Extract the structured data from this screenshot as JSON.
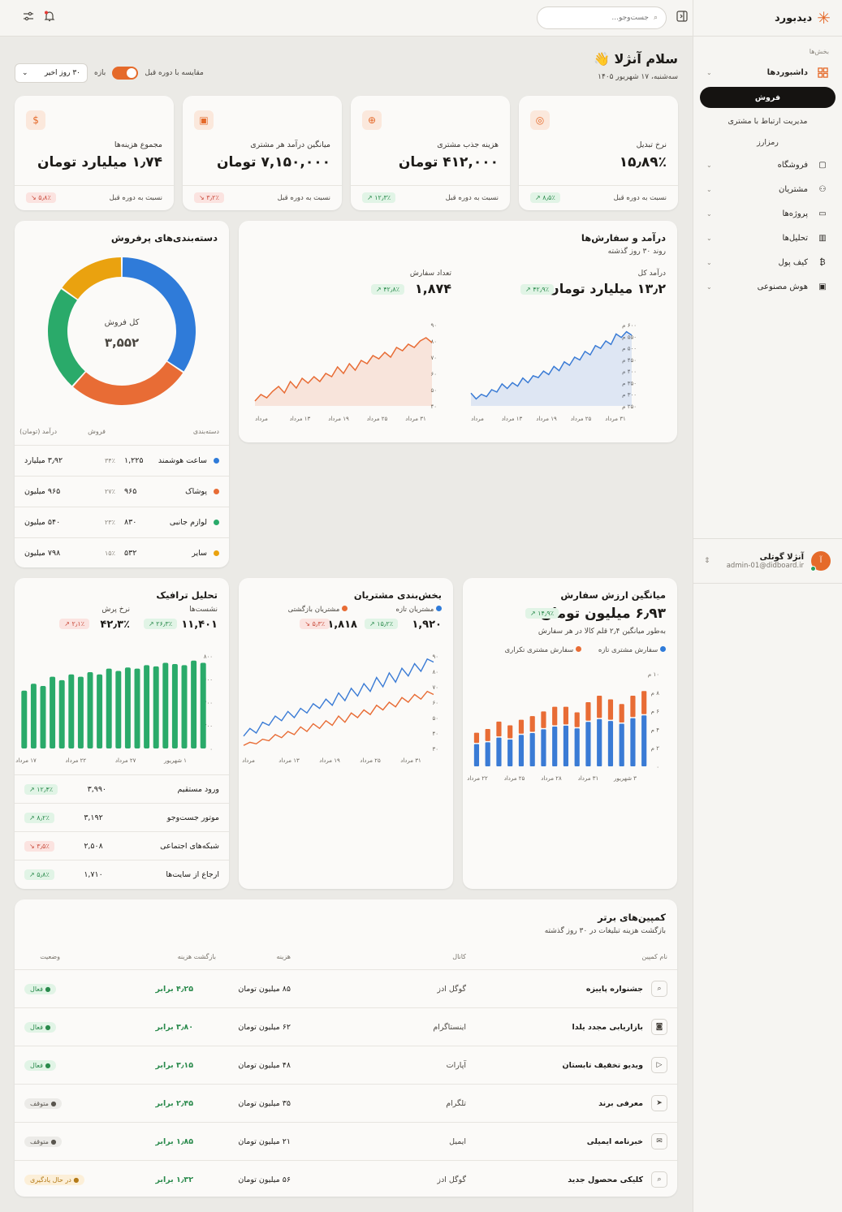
{
  "brand": {
    "name": "دیدبورد"
  },
  "sidebar": {
    "section": "بخش‌ها",
    "items": [
      {
        "label": "داشبوردها",
        "icon": "grid-icon"
      },
      {
        "label": "فروشگاه",
        "icon": "shopping-bag-icon"
      },
      {
        "label": "مشتریان",
        "icon": "users-icon"
      },
      {
        "label": "پروژه‌ها",
        "icon": "folder-icon"
      },
      {
        "label": "تحلیل‌ها",
        "icon": "bar-chart-icon"
      },
      {
        "label": "کیف پول",
        "icon": "bitcoin-icon"
      },
      {
        "label": "هوش مصنوعی",
        "icon": "robot-icon"
      }
    ],
    "subitems": [
      "فروش",
      "مدیریت ارتباط با مشتری",
      "رمزارز"
    ],
    "user": {
      "initial": "آ",
      "name": "آنژلا گوتلی",
      "email": "admin-01@didboard.ir"
    }
  },
  "topbar": {
    "search_placeholder": "جست‌وجو..."
  },
  "header": {
    "greeting": "سلام آنژلا 👋",
    "date": "سه‌شنبه، ۱۷ شهریور ۱۴۰۵",
    "compare_label": "مقایسه با دوره قبل",
    "range_label": "بازه",
    "range_value": "۳۰ روز اخیر"
  },
  "kpis": [
    {
      "label": "نرخ تبدیل",
      "value": "۱۵٫۸۹٪",
      "badge": "۸٫۵٪",
      "dir": "up",
      "foot": "نسبت به دوره قبل",
      "icon": "target-icon"
    },
    {
      "label": "هزینه جذب مشتری",
      "value": "۴۱۲,۰۰۰ تومان",
      "badge": "۱۲٫۳٪",
      "dir": "up",
      "foot": "نسبت به دوره قبل",
      "icon": "user-plus-icon"
    },
    {
      "label": "میانگین درآمد هر مشتری",
      "value": "۷,۱۵۰,۰۰۰ تومان",
      "badge": "۳٫۲٪",
      "dir": "down",
      "foot": "نسبت به دوره قبل",
      "icon": "wallet-icon"
    },
    {
      "label": "مجموع هزینه‌ها",
      "value": "۱٫۷۴ میلیارد تومان",
      "badge": "۵٫۸٪",
      "dir": "down",
      "foot": "نسبت به دوره قبل",
      "icon": "dollar-file-icon"
    }
  ],
  "revenue": {
    "title": "درآمد و سفارش‌ها",
    "subtitle": "روند ۳۰ روز گذشته",
    "rev_label": "درآمد کل",
    "rev_value": "۱۳٫۲ میلیارد تومان",
    "rev_badge": "۴۲٫۹٪",
    "ord_label": "تعداد سفارش",
    "ord_value": "۱,۸۷۴",
    "ord_badge": "۴۲٫۸٪"
  },
  "categories": {
    "title": "دسته‌بندی‌های پرفروش",
    "center_label": "کل فروش",
    "center_value": "۳,۵۵۲",
    "headers": [
      "دسته‌بندی",
      "فروش",
      "درآمد (تومان)"
    ],
    "rows": [
      {
        "name": "ساعت هوشمند",
        "pct": "۳۴٪",
        "sales": "۱,۲۲۵",
        "rev": "۳٫۹۲ میلیارد",
        "color": "#2f7bd9"
      },
      {
        "name": "پوشاک",
        "pct": "۲۷٪",
        "sales": "۹۶۵",
        "rev": "۹۶۵ میلیون",
        "color": "#e86c35"
      },
      {
        "name": "لوازم جانبی",
        "pct": "۲۳٪",
        "sales": "۸۳۰",
        "rev": "۵۴۰ میلیون",
        "color": "#2aaa6a"
      },
      {
        "name": "سایر",
        "pct": "۱۵٪",
        "sales": "۵۳۲",
        "rev": "۷۹۸ میلیون",
        "color": "#eaa20f"
      }
    ]
  },
  "aov": {
    "title": "میانگین ارزش سفارش",
    "value": "۶٫۹۳ میلیون تومان",
    "badge": "۱۴٫۹٪",
    "subtitle": "به‌طور میانگین ۲٫۴ قلم کالا در هر سفارش",
    "legend": [
      "سفارش مشتری تازه",
      "سفارش مشتری تکراری"
    ]
  },
  "segments": {
    "title": "بخش‌بندی مشتریان",
    "new_label": "مشتریان تازه",
    "new_value": "۱,۹۲۰",
    "new_badge": "۱۵٫۲٪",
    "ret_label": "مشتریان بازگشتی",
    "ret_value": "۱,۸۱۸",
    "ret_badge": "۵٫۳٪"
  },
  "traffic": {
    "title": "تحلیل ترافیک",
    "sess_label": "نشست‌ها",
    "sess_value": "۱۱,۴۰۱",
    "sess_badge": "۲۶٫۳٪",
    "bounce_label": "نرخ پرش",
    "bounce_value": "۴۲٫۳٪",
    "bounce_badge": "۲٫۱٪",
    "rows": [
      {
        "name": "ورود مستقیم",
        "value": "۳,۹۹۰",
        "badge": "۱۲٫۴٪",
        "dir": "up"
      },
      {
        "name": "موتور جست‌وجو",
        "value": "۳,۱۹۲",
        "badge": "۸٫۲٪",
        "dir": "up"
      },
      {
        "name": "شبکه‌های اجتماعی",
        "value": "۲,۵۰۸",
        "badge": "۳٫۵٪",
        "dir": "down"
      },
      {
        "name": "ارجاع از سایت‌ها",
        "value": "۱,۷۱۰",
        "badge": "۵٫۸٪",
        "dir": "up"
      }
    ]
  },
  "campaigns": {
    "title": "کمپین‌های برتر",
    "subtitle": "بازگشت هزینه تبلیغات در ۳۰ روز گذشته",
    "headers": [
      "نام کمپین",
      "کانال",
      "هزینه",
      "بازگشت هزینه",
      "وضعیت"
    ],
    "rows": [
      {
        "name": "جشنواره پاییزه",
        "channel": "گوگل ادز",
        "cost": "۸۵ میلیون تومان",
        "roas": "۴٫۲۵ برابر",
        "status": "فعال",
        "st": "a",
        "icon": "search-icon"
      },
      {
        "name": "بازاریابی مجدد یلدا",
        "channel": "اینستاگرام",
        "cost": "۶۲ میلیون تومان",
        "roas": "۳٫۸۰ برابر",
        "status": "فعال",
        "st": "a",
        "icon": "instagram-icon"
      },
      {
        "name": "ویدیو تخفیف تابستان",
        "channel": "آپارات",
        "cost": "۴۸ میلیون تومان",
        "roas": "۳٫۱۵ برابر",
        "status": "فعال",
        "st": "a",
        "icon": "play-icon"
      },
      {
        "name": "معرفی برند",
        "channel": "تلگرام",
        "cost": "۳۵ میلیون تومان",
        "roas": "۲٫۴۵ برابر",
        "status": "متوقف",
        "st": "p",
        "icon": "send-icon"
      },
      {
        "name": "خبرنامه ایمیلی",
        "channel": "ایمیل",
        "cost": "۲۱ میلیون تومان",
        "roas": "۱٫۸۵ برابر",
        "status": "متوقف",
        "st": "p",
        "icon": "mail-icon"
      },
      {
        "name": "کلیکی محصول جدید",
        "channel": "گوگل ادز",
        "cost": "۵۶ میلیون تومان",
        "roas": "۱٫۳۲ برابر",
        "status": "در حال یادگیری",
        "st": "l",
        "icon": "search-icon"
      }
    ]
  },
  "chart_data": [
    {
      "type": "area",
      "title": "درآمد کل",
      "x_ticks": [
        "مرداد",
        "۱۳ مرداد",
        "۱۹ مرداد",
        "۲۵ مرداد",
        "۳۱ مرداد"
      ],
      "y_ticks": [
        "۲۵۰ م",
        "۳۰۰ م",
        "۳۵۰ م",
        "۴۰۰ م",
        "۴۵۰ م",
        "۵۰۰ م",
        "۵۵۰ م",
        "۶۰۰ م"
      ],
      "ylim": [
        250,
        600
      ],
      "values": [
        305,
        280,
        300,
        290,
        320,
        310,
        345,
        325,
        350,
        335,
        370,
        350,
        380,
        372,
        400,
        385,
        420,
        402,
        440,
        425,
        460,
        448,
        485,
        470,
        510,
        498,
        530,
        515,
        560,
        545,
        570,
        555
      ],
      "color": "#3a7bd5"
    },
    {
      "type": "area",
      "title": "تعداد سفارش",
      "x_ticks": [
        "مرداد",
        "۱۳ مرداد",
        "۱۹ مرداد",
        "۲۵ مرداد",
        "۳۱ مرداد"
      ],
      "y_ticks": [
        "۴۰",
        "۵۰",
        "۶۰",
        "۷۰",
        "۸۰",
        "۹۰"
      ],
      "ylim": [
        40,
        90
      ],
      "values": [
        43,
        47,
        45,
        49,
        52,
        48,
        55,
        51,
        57,
        54,
        58,
        55,
        60,
        58,
        64,
        60,
        66,
        62,
        68,
        66,
        71,
        69,
        73,
        70,
        76,
        74,
        78,
        76,
        80,
        82,
        79
      ],
      "color": "#e86c35"
    },
    {
      "type": "pie",
      "categories": [
        "ساعت هوشمند",
        "پوشاک",
        "لوازم جانبی",
        "سایر"
      ],
      "values": [
        34,
        27,
        23,
        15
      ]
    },
    {
      "type": "bar",
      "stacked": true,
      "series": [
        {
          "name": "سفارش مشتری تازه",
          "values": [
            2.4,
            2.6,
            3.1,
            2.9,
            3.4,
            3.6,
            4.0,
            4.3,
            4.4,
            4.1,
            4.8,
            5.1,
            4.9,
            4.6,
            5.2,
            5.5
          ]
        },
        {
          "name": "سفارش مشتری تکراری",
          "values": [
            1.1,
            1.3,
            1.6,
            1.4,
            1.5,
            1.7,
            1.8,
            2.0,
            1.9,
            1.6,
            2.0,
            2.4,
            2.2,
            2.0,
            2.3,
            2.5
          ]
        }
      ],
      "x_ticks": [
        "۲۲ مرداد",
        "۲۵ مرداد",
        "۲۸ مرداد",
        "۳۱ مرداد",
        "۳ شهریور"
      ],
      "y_ticks": [
        "۰",
        "۲ م",
        "۴ م",
        "۶ م",
        "۸ م",
        "۱۰ م"
      ],
      "ylim": [
        0,
        10
      ]
    },
    {
      "type": "line",
      "series": [
        {
          "name": "مشتریان تازه",
          "values": [
            38,
            43,
            40,
            47,
            45,
            51,
            48,
            54,
            50,
            56,
            53,
            59,
            56,
            62,
            58,
            66,
            61,
            69,
            64,
            72,
            67,
            76,
            70,
            79,
            73,
            82,
            77,
            85,
            80,
            88,
            86
          ]
        },
        {
          "name": "مشتریان بازگشتی",
          "values": [
            32,
            34,
            33,
            36,
            35,
            39,
            37,
            41,
            39,
            44,
            41,
            46,
            43,
            48,
            45,
            51,
            47,
            53,
            50,
            55,
            52,
            58,
            55,
            60,
            57,
            63,
            60,
            65,
            62,
            67,
            65
          ]
        }
      ],
      "x_ticks": [
        "مرداد",
        "۱۳ مرداد",
        "۱۹ مرداد",
        "۲۵ مرداد",
        "۳۱ مرداد"
      ],
      "y_ticks": [
        "۳۰",
        "۴۰",
        "۵۰",
        "۶۰",
        "۷۰",
        "۸۰",
        "۹۰"
      ],
      "ylim": [
        30,
        90
      ]
    },
    {
      "type": "bar",
      "values": [
        500,
        560,
        540,
        620,
        590,
        640,
        620,
        660,
        640,
        690,
        670,
        700,
        690,
        720,
        710,
        740,
        730,
        720,
        760,
        740
      ],
      "x_ticks": [
        "۱۷ مرداد",
        "۲۲ مرداد",
        "۲۷ مرداد",
        "۱ شهریور"
      ],
      "y_ticks": [
        "۰",
        "۲۰۰",
        "۴۰۰",
        "۶۰۰",
        "۸۰۰"
      ],
      "ylim": [
        0,
        800
      ]
    }
  ]
}
